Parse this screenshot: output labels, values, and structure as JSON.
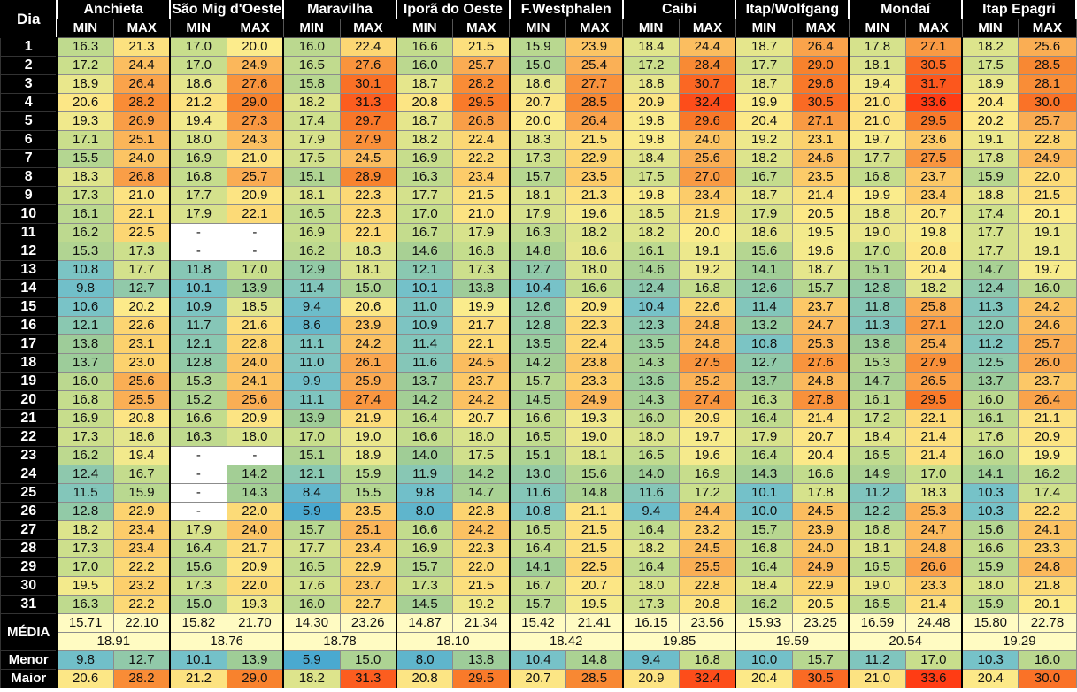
{
  "header": {
    "day_label": "Dia",
    "min_label": "MIN",
    "max_label": "MAX"
  },
  "cities": [
    "Anchieta",
    "São Mig d'Oeste",
    "Maravilha",
    "Iporã do Oeste",
    "F.Westphalen",
    "Caibi",
    "Itap/Wolfgang",
    "Mondaí",
    "Itap Epagri"
  ],
  "rows": [
    {
      "day": "1",
      "vals": [
        "16.3",
        "21.3",
        "17.0",
        "20.0",
        "16.0",
        "22.4",
        "16.6",
        "21.5",
        "15.9",
        "23.9",
        "18.4",
        "24.4",
        "18.7",
        "26.4",
        "17.8",
        "27.1",
        "18.2",
        "25.6"
      ]
    },
    {
      "day": "2",
      "vals": [
        "17.2",
        "24.4",
        "17.0",
        "24.9",
        "16.5",
        "27.6",
        "16.0",
        "25.7",
        "15.0",
        "25.4",
        "17.2",
        "28.4",
        "17.7",
        "29.0",
        "18.1",
        "30.5",
        "17.5",
        "28.5"
      ]
    },
    {
      "day": "3",
      "vals": [
        "18.9",
        "26.4",
        "18.6",
        "27.6",
        "15.8",
        "30.1",
        "18.7",
        "28.2",
        "18.6",
        "27.7",
        "18.8",
        "30.7",
        "18.7",
        "29.6",
        "19.4",
        "31.7",
        "18.9",
        "28.1"
      ]
    },
    {
      "day": "4",
      "vals": [
        "20.6",
        "28.2",
        "21.2",
        "29.0",
        "18.2",
        "31.3",
        "20.8",
        "29.5",
        "20.7",
        "28.5",
        "20.9",
        "32.4",
        "19.9",
        "30.5",
        "21.0",
        "33.6",
        "20.4",
        "30.0"
      ]
    },
    {
      "day": "5",
      "vals": [
        "19.3",
        "26.9",
        "19.4",
        "27.3",
        "17.4",
        "29.7",
        "18.7",
        "26.8",
        "20.0",
        "26.4",
        "19.8",
        "29.6",
        "20.4",
        "27.1",
        "21.0",
        "29.5",
        "20.2",
        "25.7"
      ]
    },
    {
      "day": "6",
      "vals": [
        "17.1",
        "25.1",
        "18.0",
        "24.3",
        "17.9",
        "27.9",
        "18.2",
        "22.4",
        "18.3",
        "21.5",
        "19.8",
        "24.0",
        "19.2",
        "23.1",
        "19.7",
        "23.6",
        "19.1",
        "22.8"
      ]
    },
    {
      "day": "7",
      "vals": [
        "15.5",
        "24.0",
        "16.9",
        "21.0",
        "17.5",
        "24.5",
        "16.9",
        "22.2",
        "17.3",
        "22.9",
        "18.4",
        "25.6",
        "18.2",
        "24.6",
        "17.7",
        "27.5",
        "17.8",
        "24.9"
      ]
    },
    {
      "day": "8",
      "vals": [
        "18.3",
        "26.8",
        "16.8",
        "25.7",
        "15.1",
        "28.9",
        "16.3",
        "23.4",
        "15.7",
        "23.5",
        "17.5",
        "27.0",
        "16.7",
        "23.5",
        "16.8",
        "23.7",
        "15.9",
        "22.0"
      ]
    },
    {
      "day": "9",
      "vals": [
        "17.3",
        "21.0",
        "17.7",
        "20.9",
        "18.1",
        "22.3",
        "17.7",
        "21.5",
        "18.1",
        "21.3",
        "19.8",
        "23.4",
        "18.7",
        "21.4",
        "19.9",
        "23.4",
        "18.8",
        "21.5"
      ]
    },
    {
      "day": "10",
      "vals": [
        "16.1",
        "22.1",
        "17.9",
        "22.1",
        "16.5",
        "22.3",
        "17.0",
        "21.0",
        "17.9",
        "19.6",
        "18.5",
        "21.9",
        "17.9",
        "20.5",
        "18.8",
        "20.7",
        "17.4",
        "20.1"
      ]
    },
    {
      "day": "11",
      "vals": [
        "16.2",
        "22.5",
        "-",
        "-",
        "16.9",
        "22.1",
        "16.7",
        "17.9",
        "16.3",
        "18.2",
        "18.2",
        "20.0",
        "18.6",
        "19.5",
        "19.0",
        "19.8",
        "17.7",
        "19.1"
      ]
    },
    {
      "day": "12",
      "vals": [
        "15.3",
        "17.3",
        "-",
        "-",
        "16.2",
        "18.3",
        "14.6",
        "16.8",
        "14.8",
        "18.6",
        "16.1",
        "19.1",
        "15.6",
        "19.6",
        "17.0",
        "20.8",
        "17.7",
        "19.1"
      ]
    },
    {
      "day": "13",
      "vals": [
        "10.8",
        "17.7",
        "11.8",
        "17.0",
        "12.9",
        "18.1",
        "12.1",
        "17.3",
        "12.7",
        "18.0",
        "14.6",
        "19.2",
        "14.1",
        "18.7",
        "15.1",
        "20.4",
        "14.7",
        "19.7"
      ]
    },
    {
      "day": "14",
      "vals": [
        "9.8",
        "12.7",
        "10.1",
        "13.9",
        "11.4",
        "15.0",
        "10.1",
        "13.8",
        "10.4",
        "16.6",
        "12.4",
        "16.8",
        "12.6",
        "15.7",
        "12.8",
        "18.2",
        "12.4",
        "16.0"
      ]
    },
    {
      "day": "15",
      "vals": [
        "10.6",
        "20.2",
        "10.9",
        "18.5",
        "9.4",
        "20.6",
        "11.0",
        "19.9",
        "12.6",
        "20.9",
        "10.4",
        "22.6",
        "11.4",
        "23.7",
        "11.8",
        "25.8",
        "11.3",
        "24.2"
      ]
    },
    {
      "day": "16",
      "vals": [
        "12.1",
        "22.6",
        "11.7",
        "21.6",
        "8.6",
        "23.9",
        "10.9",
        "21.7",
        "12.8",
        "22.3",
        "12.3",
        "24.8",
        "13.2",
        "24.7",
        "11.3",
        "27.1",
        "12.0",
        "24.6"
      ]
    },
    {
      "day": "17",
      "vals": [
        "13.8",
        "23.1",
        "12.1",
        "22.8",
        "11.1",
        "24.2",
        "11.4",
        "22.1",
        "13.5",
        "22.4",
        "13.5",
        "24.8",
        "10.8",
        "25.3",
        "13.8",
        "25.4",
        "11.2",
        "25.7"
      ]
    },
    {
      "day": "18",
      "vals": [
        "13.7",
        "23.0",
        "12.8",
        "24.0",
        "11.0",
        "26.1",
        "11.6",
        "24.5",
        "14.2",
        "23.8",
        "14.3",
        "27.5",
        "12.7",
        "27.6",
        "15.3",
        "27.9",
        "12.5",
        "26.0"
      ]
    },
    {
      "day": "19",
      "vals": [
        "16.0",
        "25.6",
        "15.3",
        "24.1",
        "9.9",
        "25.9",
        "13.7",
        "23.7",
        "15.7",
        "23.3",
        "13.6",
        "25.2",
        "13.7",
        "24.8",
        "14.7",
        "26.5",
        "13.7",
        "23.7"
      ]
    },
    {
      "day": "20",
      "vals": [
        "16.8",
        "25.5",
        "15.2",
        "25.6",
        "11.1",
        "27.4",
        "14.2",
        "24.2",
        "14.5",
        "24.9",
        "14.3",
        "27.4",
        "16.3",
        "27.8",
        "16.1",
        "29.5",
        "16.0",
        "26.4"
      ]
    },
    {
      "day": "21",
      "vals": [
        "16.9",
        "20.8",
        "16.6",
        "20.9",
        "13.9",
        "21.9",
        "16.4",
        "20.7",
        "16.6",
        "19.3",
        "16.0",
        "20.9",
        "16.4",
        "21.4",
        "17.2",
        "22.1",
        "16.1",
        "21.1"
      ]
    },
    {
      "day": "22",
      "vals": [
        "17.3",
        "18.6",
        "16.3",
        "18.0",
        "17.0",
        "19.0",
        "16.6",
        "18.0",
        "16.5",
        "19.0",
        "18.0",
        "19.7",
        "17.9",
        "20.7",
        "18.4",
        "21.4",
        "17.6",
        "20.9"
      ]
    },
    {
      "day": "23",
      "vals": [
        "16.2",
        "19.4",
        "-",
        "-",
        "15.1",
        "18.9",
        "14.0",
        "17.5",
        "15.1",
        "18.1",
        "16.5",
        "19.6",
        "16.4",
        "20.4",
        "16.5",
        "21.4",
        "16.0",
        "19.9"
      ]
    },
    {
      "day": "24",
      "vals": [
        "12.4",
        "16.7",
        "-",
        "14.2",
        "12.1",
        "15.9",
        "11.9",
        "14.2",
        "13.0",
        "15.6",
        "14.0",
        "16.9",
        "14.3",
        "16.6",
        "14.9",
        "17.0",
        "14.1",
        "16.2"
      ]
    },
    {
      "day": "25",
      "vals": [
        "11.5",
        "15.9",
        "-",
        "14.3",
        "8.4",
        "15.5",
        "9.8",
        "14.7",
        "11.6",
        "14.8",
        "11.6",
        "17.2",
        "10.1",
        "17.8",
        "11.2",
        "18.3",
        "10.3",
        "17.4"
      ]
    },
    {
      "day": "26",
      "vals": [
        "12.8",
        "22.9",
        "-",
        "22.0",
        "5.9",
        "23.5",
        "8.0",
        "22.8",
        "10.8",
        "21.1",
        "9.4",
        "24.4",
        "10.0",
        "24.5",
        "12.2",
        "25.3",
        "10.3",
        "22.2"
      ]
    },
    {
      "day": "27",
      "vals": [
        "18.2",
        "23.4",
        "17.9",
        "24.0",
        "15.7",
        "25.1",
        "16.6",
        "24.2",
        "16.5",
        "21.5",
        "16.4",
        "23.2",
        "15.7",
        "23.9",
        "16.8",
        "24.7",
        "15.6",
        "24.1"
      ]
    },
    {
      "day": "28",
      "vals": [
        "17.3",
        "23.4",
        "16.4",
        "21.7",
        "17.7",
        "23.4",
        "16.9",
        "22.3",
        "16.4",
        "21.5",
        "18.2",
        "24.5",
        "16.8",
        "24.0",
        "18.1",
        "24.8",
        "16.6",
        "23.3"
      ]
    },
    {
      "day": "29",
      "vals": [
        "17.0",
        "22.2",
        "15.6",
        "20.9",
        "16.5",
        "22.9",
        "15.7",
        "22.0",
        "14.1",
        "22.5",
        "16.4",
        "25.5",
        "16.4",
        "24.9",
        "16.5",
        "26.6",
        "15.9",
        "24.8"
      ]
    },
    {
      "day": "30",
      "vals": [
        "19.5",
        "23.2",
        "17.3",
        "22.0",
        "17.6",
        "23.7",
        "17.3",
        "21.5",
        "16.7",
        "20.7",
        "18.0",
        "22.8",
        "18.4",
        "22.9",
        "19.0",
        "23.3",
        "18.0",
        "21.8"
      ]
    },
    {
      "day": "31",
      "vals": [
        "16.3",
        "22.2",
        "15.0",
        "19.3",
        "16.0",
        "22.7",
        "14.5",
        "19.2",
        "15.7",
        "19.5",
        "17.3",
        "20.8",
        "16.2",
        "20.5",
        "16.5",
        "21.4",
        "15.9",
        "20.1"
      ]
    }
  ],
  "media": {
    "label": "MÉDIA",
    "vals": [
      "15.71",
      "22.10",
      "15.82",
      "21.70",
      "14.30",
      "23.26",
      "14.87",
      "21.34",
      "15.42",
      "21.41",
      "16.15",
      "23.56",
      "15.93",
      "23.25",
      "16.59",
      "24.48",
      "15.80",
      "22.78"
    ],
    "overall": [
      "18.91",
      "18.76",
      "18.78",
      "18.10",
      "18.42",
      "19.85",
      "19.59",
      "20.54",
      "19.29"
    ]
  },
  "menor": {
    "label": "Menor",
    "vals": [
      "9.8",
      "12.7",
      "10.1",
      "13.9",
      "5.9",
      "15.0",
      "8.0",
      "13.8",
      "10.4",
      "14.8",
      "9.4",
      "16.8",
      "10.0",
      "15.7",
      "11.2",
      "17.0",
      "10.3",
      "16.0"
    ]
  },
  "maior": {
    "label": "Maior",
    "vals": [
      "20.6",
      "28.2",
      "21.2",
      "29.0",
      "18.2",
      "31.3",
      "20.8",
      "29.5",
      "20.7",
      "28.5",
      "20.9",
      "32.4",
      "20.4",
      "30.5",
      "21.0",
      "33.6",
      "20.4",
      "30.0"
    ]
  },
  "colors": {
    "header_bg": "#000000",
    "header_text": "#ffffff",
    "empty_cell": "#ffffff",
    "media_bg": "#fffbc2",
    "scale_min": "#4aa9d0",
    "scale_mid": "#fde98a",
    "scale_max": "#ff3d15"
  }
}
